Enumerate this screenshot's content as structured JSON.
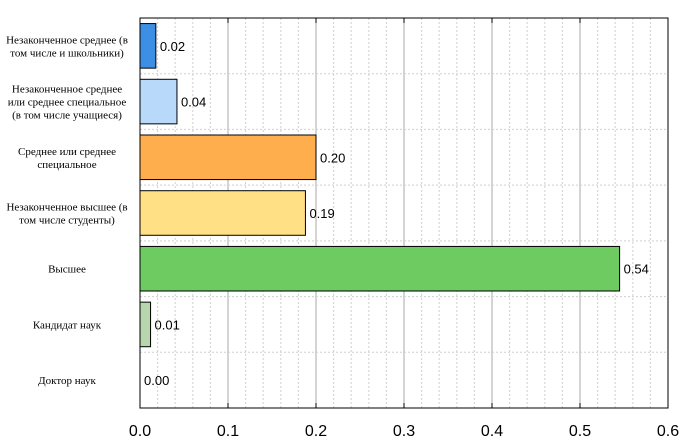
{
  "chart_data": {
    "type": "bar",
    "orientation": "horizontal",
    "categories": [
      [
        "Незаконченное среднее (в",
        "том числе и школьники)"
      ],
      [
        "Незаконченное среднее",
        "или среднее специальное",
        "(в том числе учащиеся)"
      ],
      [
        "Среднее или среднее",
        "специальное"
      ],
      [
        "Незаконченное высшее (в",
        "том числе студенты)"
      ],
      [
        "Высшее"
      ],
      [
        "Кандидат наук"
      ],
      [
        "Доктор наук"
      ]
    ],
    "values": [
      0.018,
      0.042,
      0.2,
      0.188,
      0.545,
      0.012,
      0.0
    ],
    "value_labels": [
      "0.02",
      "0.04",
      "0.20",
      "0.19",
      "0.54",
      "0.01",
      "0.00"
    ],
    "colors": [
      "#3d8fe6",
      "#b9d9fb",
      "#ffae4d",
      "#ffe084",
      "#6ecb61",
      "#b8d6ad",
      "#ffffff"
    ],
    "xlim": [
      0,
      0.6
    ],
    "xticks": [
      0,
      0.1,
      0.2,
      0.3,
      0.4,
      0.5,
      0.6
    ],
    "xtick_labels": [
      "0.0",
      "0.1",
      "0.2",
      "0.3",
      "0.4",
      "0.5",
      "0.6"
    ],
    "title": "",
    "xlabel": "",
    "ylabel": "",
    "grid": true,
    "legend": "none"
  }
}
